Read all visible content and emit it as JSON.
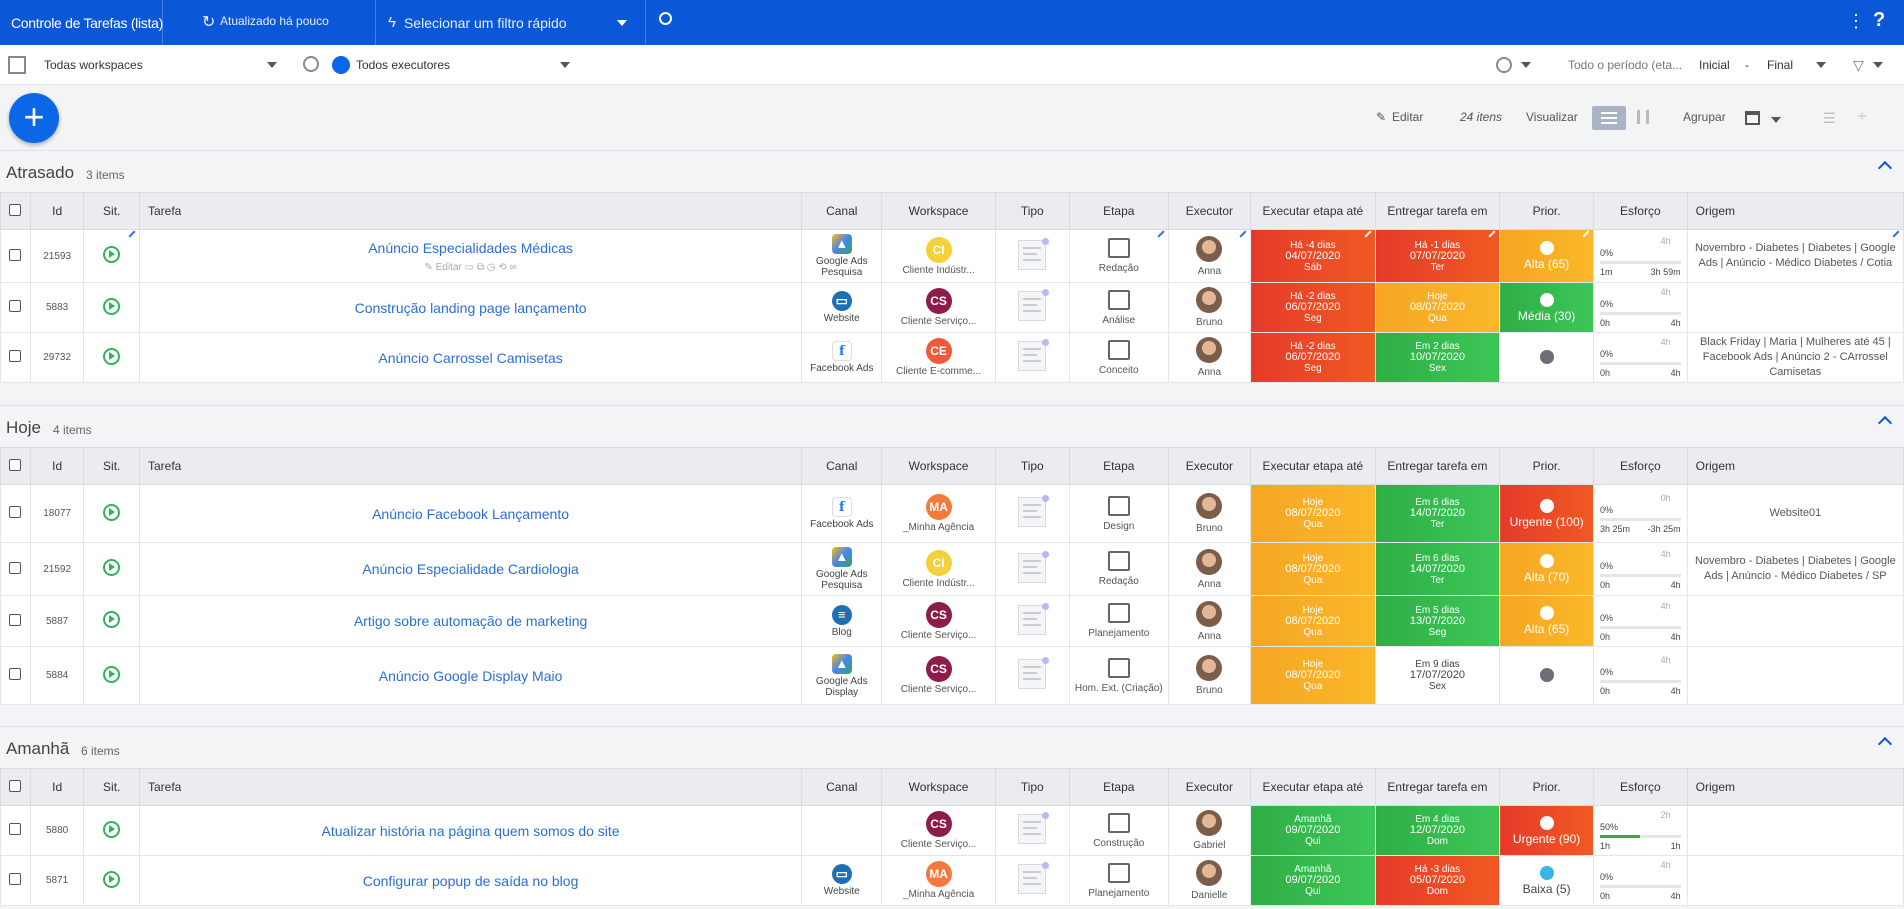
{
  "topbar": {
    "title": "Controle de Tarefas (lista)",
    "updated": "Atualizado há pouco",
    "quick_filter": "Selecionar um filtro rápido"
  },
  "subbar": {
    "workspace": "Todas workspaces",
    "executor": "Todos executores",
    "period": "Todo o período (eta...",
    "start": "Inicial",
    "dash": "-",
    "end": "Final"
  },
  "toolbar": {
    "edit": "Editar",
    "count": "24 itens",
    "view": "Visualizar",
    "group": "Agrupar"
  },
  "columns": [
    "Id",
    "Sit.",
    "Tarefa",
    "Canal",
    "Workspace",
    "Tipo",
    "Etapa",
    "Executor",
    "Executar etapa até",
    "Entregar tarefa em",
    "Prior.",
    "Esforço",
    "Origem"
  ],
  "colors": {
    "primary": "#0a58d8",
    "red": "#e53a2a",
    "green": "#2fae45",
    "orange": "#f5a623"
  },
  "groups": [
    {
      "title": "Atrasado",
      "count": "3 items",
      "rows": [
        {
          "id": "21593",
          "task": "Anúncio Especialidades Médicas",
          "sub": "Editar",
          "channel": "Google Ads Pesquisa",
          "channel_icon": "google-ads-icon",
          "ws_initials": "CI",
          "ws_color": "#f2d13a",
          "ws": "Cliente Indústr...",
          "etapa": "Redação",
          "exec": "Anna",
          "d1_top": "Há -4 dias",
          "d1_date": "04/07/2020",
          "d1_day": "Sáb",
          "d1_bg": "red",
          "d2_top": "Há -1 dias",
          "d2_date": "07/07/2020",
          "d2_day": "Ter",
          "d2_bg": "red",
          "pri": "Alta (65)",
          "pri_bg": "orange",
          "eff_top": "4h",
          "eff_pct": "0%",
          "eff_l": "1m",
          "eff_r": "3h 59m",
          "eff_fill": 0,
          "orig": "Novembro - Diabetes | Diabetes | Google Ads | Anúncio - Médico Diabetes / Cotia"
        },
        {
          "id": "5883",
          "task": "Construção landing page lançamento",
          "sub": "",
          "channel": "Website",
          "channel_icon": "website-icon",
          "ws_initials": "CS",
          "ws_color": "#8c1d4a",
          "ws": "Cliente Serviço...",
          "etapa": "Análise",
          "exec": "Bruno",
          "d1_top": "Há -2 dias",
          "d1_date": "06/07/2020",
          "d1_day": "Seg",
          "d1_bg": "red",
          "d2_top": "Hoje",
          "d2_date": "08/07/2020",
          "d2_day": "Qua",
          "d2_bg": "orange",
          "pri": "Média (30)",
          "pri_bg": "green",
          "eff_top": "4h",
          "eff_pct": "0%",
          "eff_l": "0h",
          "eff_r": "4h",
          "eff_fill": 0,
          "orig": ""
        },
        {
          "id": "29732",
          "task": "Anúncio Carrossel Camisetas",
          "sub": "",
          "channel": "Facebook Ads",
          "channel_icon": "facebook-ads-icon",
          "ws_initials": "CE",
          "ws_color": "#f05a3a",
          "ws": "Cliente E-comme...",
          "etapa": "Conceito",
          "exec": "Anna",
          "d1_top": "Há -2 dias",
          "d1_date": "06/07/2020",
          "d1_day": "Seg",
          "d1_bg": "red",
          "d2_top": "Em 2 dias",
          "d2_date": "10/07/2020",
          "d2_day": "Sex",
          "d2_bg": "green",
          "pri": "",
          "pri_bg": "neutral",
          "eff_top": "4h",
          "eff_pct": "0%",
          "eff_l": "0h",
          "eff_r": "4h",
          "eff_fill": 0,
          "orig": "Black Friday | Maria | Mulheres até 45 | Facebook Ads | Anúncio 2 - CArrossel Camisetas"
        }
      ]
    },
    {
      "title": "Hoje",
      "count": "4 items",
      "rows": [
        {
          "id": "18077",
          "task": "Anúncio Facebook Lançamento",
          "sub": "",
          "channel": "Facebook Ads",
          "channel_icon": "facebook-ads-icon",
          "ws_initials": "MA",
          "ws_color": "#f57a3a",
          "ws": "_Minha Agência",
          "etapa": "Design",
          "exec": "Bruno",
          "d1_top": "Hoje",
          "d1_date": "08/07/2020",
          "d1_day": "Qua",
          "d1_bg": "orange",
          "d2_top": "Em 6 dias",
          "d2_date": "14/07/2020",
          "d2_day": "Ter",
          "d2_bg": "green",
          "pri": "Urgente (100)",
          "pri_bg": "red",
          "eff_top": "0h",
          "eff_pct": "0%",
          "eff_l": "3h 25m",
          "eff_r": "-3h 25m",
          "eff_fill": 0,
          "orig": "Website01"
        },
        {
          "id": "21592",
          "task": "Anúncio Especialidade Cardiologia",
          "sub": "",
          "channel": "Google Ads Pesquisa",
          "channel_icon": "google-ads-icon",
          "ws_initials": "CI",
          "ws_color": "#f2d13a",
          "ws": "Cliente Indústr...",
          "etapa": "Redação",
          "exec": "Anna",
          "d1_top": "Hoje",
          "d1_date": "08/07/2020",
          "d1_day": "Qua",
          "d1_bg": "orange",
          "d2_top": "Em 6 dias",
          "d2_date": "14/07/2020",
          "d2_day": "Ter",
          "d2_bg": "green",
          "pri": "Alta (70)",
          "pri_bg": "orange",
          "eff_top": "4h",
          "eff_pct": "0%",
          "eff_l": "0h",
          "eff_r": "4h",
          "eff_fill": 0,
          "orig": "Novembro - Diabetes | Diabetes | Google Ads | Anúncio - Médico Diabetes / SP"
        },
        {
          "id": "5887",
          "task": "Artigo sobre automação de marketing",
          "sub": "",
          "channel": "Blog",
          "channel_icon": "blog-icon",
          "ws_initials": "CS",
          "ws_color": "#8c1d4a",
          "ws": "Cliente Serviço...",
          "etapa": "Planejamento",
          "exec": "Anna",
          "d1_top": "Hoje",
          "d1_date": "08/07/2020",
          "d1_day": "Qua",
          "d1_bg": "orange",
          "d2_top": "Em 5 dias",
          "d2_date": "13/07/2020",
          "d2_day": "Seg",
          "d2_bg": "green",
          "pri": "Alta (65)",
          "pri_bg": "orange",
          "eff_top": "4h",
          "eff_pct": "0%",
          "eff_l": "0h",
          "eff_r": "4h",
          "eff_fill": 0,
          "orig": ""
        },
        {
          "id": "5884",
          "task": "Anúncio Google Display Maio",
          "sub": "",
          "channel": "Google Ads Display",
          "channel_icon": "google-ads-icon",
          "ws_initials": "CS",
          "ws_color": "#8c1d4a",
          "ws": "Cliente Serviço...",
          "etapa": "Hom. Ext. (Criação)",
          "exec": "Bruno",
          "d1_top": "Hoje",
          "d1_date": "08/07/2020",
          "d1_day": "Qua",
          "d1_bg": "orange",
          "d2_top": "Em 9 dias",
          "d2_date": "17/07/2020",
          "d2_day": "Sex",
          "d2_bg": "white",
          "pri": "",
          "pri_bg": "neutral",
          "eff_top": "4h",
          "eff_pct": "0%",
          "eff_l": "0h",
          "eff_r": "4h",
          "eff_fill": 0,
          "orig": ""
        }
      ]
    },
    {
      "title": "Amanhã",
      "count": "6 items",
      "rows": [
        {
          "id": "5880",
          "task": "Atualizar história na página quem somos do site",
          "sub": "",
          "channel": "",
          "channel_icon": "",
          "ws_initials": "CS",
          "ws_color": "#8c1d4a",
          "ws": "Cliente Serviço...",
          "etapa": "Construção",
          "exec": "Gabriel",
          "d1_top": "Amanhã",
          "d1_date": "09/07/2020",
          "d1_day": "Qui",
          "d1_bg": "green",
          "d2_top": "Em 4 dias",
          "d2_date": "12/07/2020",
          "d2_day": "Dom",
          "d2_bg": "green",
          "pri": "Urgente (90)",
          "pri_bg": "red",
          "eff_top": "2h",
          "eff_pct": "50%",
          "eff_l": "1h",
          "eff_r": "1h",
          "eff_fill": 0.5,
          "orig": ""
        },
        {
          "id": "5871",
          "task": "Configurar popup de saída no blog",
          "sub": "",
          "channel": "Website",
          "channel_icon": "website-icon",
          "ws_initials": "MA",
          "ws_color": "#f57a3a",
          "ws": "_Minha Agência",
          "etapa": "Planejamento",
          "exec": "Danielle",
          "d1_top": "Amanhã",
          "d1_date": "09/07/2020",
          "d1_day": "Qui",
          "d1_bg": "green",
          "d2_top": "Há -3 dias",
          "d2_date": "05/07/2020",
          "d2_day": "Dom",
          "d2_bg": "red",
          "pri": "Baixa (5)",
          "pri_bg": "blue",
          "eff_top": "4h",
          "eff_pct": "0%",
          "eff_l": "0h",
          "eff_r": "4h",
          "eff_fill": 0,
          "orig": ""
        }
      ]
    }
  ]
}
